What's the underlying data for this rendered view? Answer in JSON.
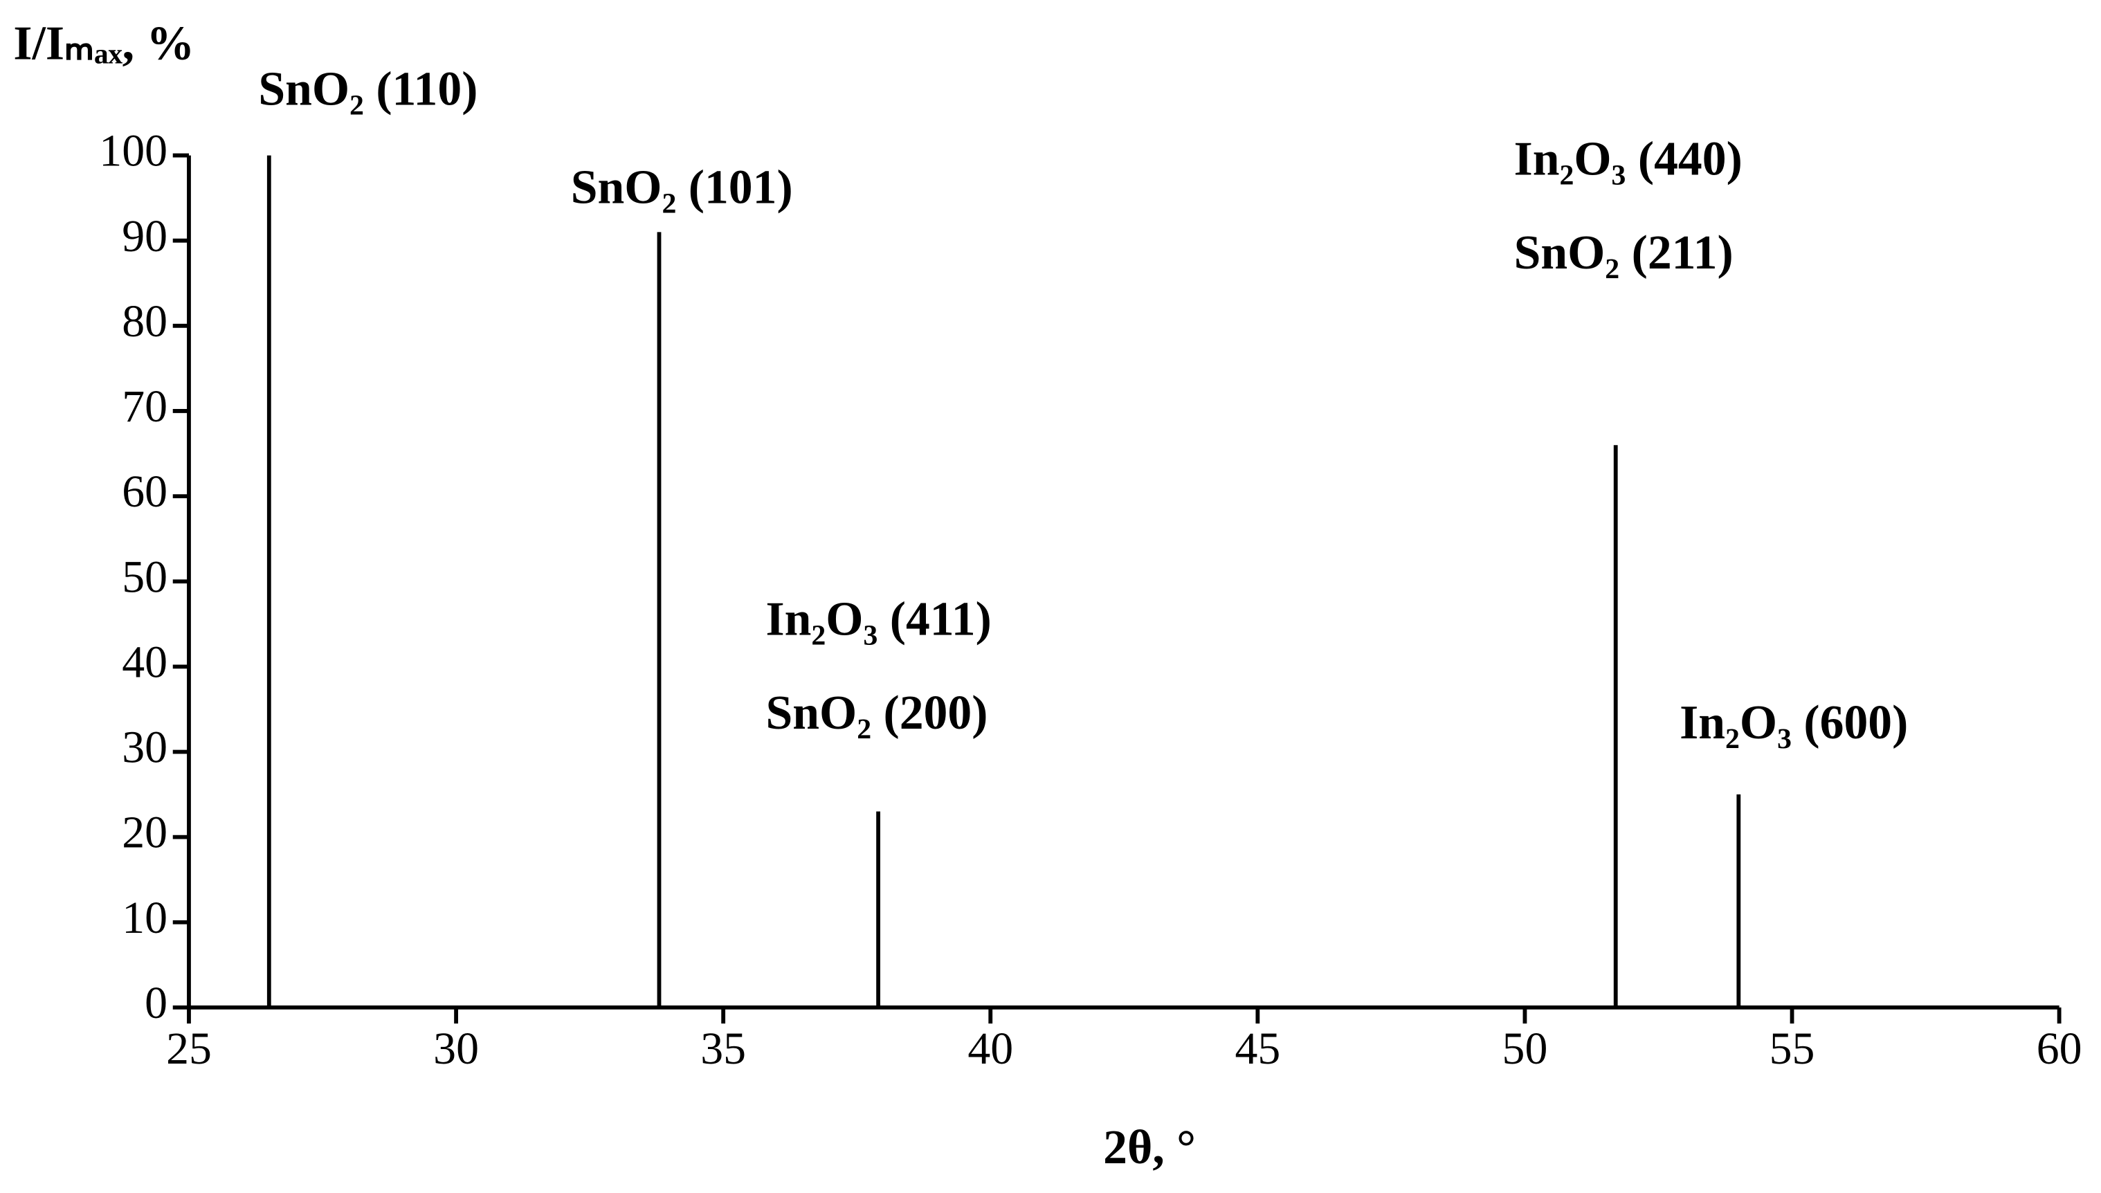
{
  "chart_data": {
    "type": "stem",
    "y_label": "I/Iₘₐₓ, %",
    "x_label": "2θ, °",
    "x": [
      26.5,
      33.8,
      37.9,
      51.7,
      54.0
    ],
    "values": [
      100,
      91,
      23,
      66,
      25
    ],
    "peak_labels": [
      [
        "SnO₂ (110)"
      ],
      [
        "SnO₂ (101)"
      ],
      [
        "In₂O₃ (411)",
        "SnO₂ (200)"
      ],
      [
        "In₂O₃ (440)",
        "SnO₂ (211)"
      ],
      [
        "In₂O₃ (600)"
      ]
    ],
    "color": "#000000",
    "xlim": [
      25,
      60
    ],
    "xticks": [
      25,
      30,
      35,
      40,
      45,
      50,
      55,
      60
    ],
    "ylim": [
      0,
      100
    ],
    "yticks": [
      0,
      10,
      20,
      30,
      40,
      50,
      60,
      70,
      80,
      90,
      100
    ],
    "grid": false
  }
}
